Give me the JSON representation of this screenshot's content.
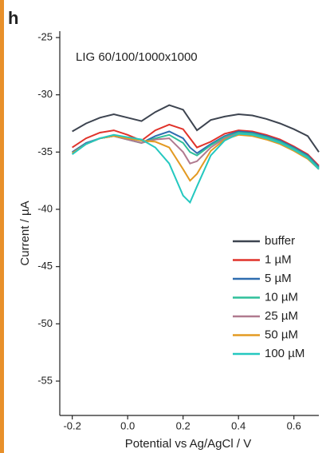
{
  "panel_label": "h",
  "chart_data": {
    "type": "line",
    "annotation": "LIG 60/100/1000x1000",
    "x_label": "Potential vs Ag/AgCl / V",
    "y_label": "Current / µA",
    "x": [
      -0.2,
      -0.15,
      -0.1,
      -0.05,
      0,
      0.05,
      0.1,
      0.15,
      0.2,
      0.225,
      0.25,
      0.3,
      0.35,
      0.4,
      0.45,
      0.5,
      0.55,
      0.6,
      0.65,
      0.69
    ],
    "series": [
      {
        "name": "buffer",
        "color": "#3d4450",
        "values": [
          -33.2,
          -32.5,
          -32.0,
          -31.7,
          -32.0,
          -32.3,
          -31.5,
          -30.9,
          -31.3,
          -32.2,
          -33.1,
          -32.2,
          -31.9,
          -31.7,
          -31.8,
          -32.1,
          -32.5,
          -33.0,
          -33.6,
          -35.0
        ]
      },
      {
        "name": "1 µM",
        "color": "#e0322a",
        "values": [
          -34.6,
          -33.8,
          -33.3,
          -33.1,
          -33.5,
          -34.0,
          -33.1,
          -32.6,
          -33.0,
          -33.8,
          -34.6,
          -34.1,
          -33.4,
          -33.1,
          -33.2,
          -33.5,
          -33.9,
          -34.5,
          -35.2,
          -36.2
        ]
      },
      {
        "name": "5 µM",
        "color": "#2e6db0",
        "values": [
          -35.0,
          -34.2,
          -33.8,
          -33.6,
          -33.9,
          -34.2,
          -33.6,
          -33.2,
          -33.8,
          -34.6,
          -35.1,
          -34.3,
          -33.6,
          -33.2,
          -33.3,
          -33.6,
          -34.0,
          -34.6,
          -35.3,
          -36.3
        ]
      },
      {
        "name": "10 µM",
        "color": "#2fbf9a",
        "values": [
          -35.1,
          -34.3,
          -33.8,
          -33.6,
          -33.9,
          -34.2,
          -33.8,
          -33.5,
          -34.2,
          -35.0,
          -35.3,
          -34.4,
          -33.7,
          -33.3,
          -33.4,
          -33.7,
          -34.1,
          -34.7,
          -35.4,
          -36.4
        ]
      },
      {
        "name": "25 µM",
        "color": "#b07a8f",
        "values": [
          -35.1,
          -34.3,
          -33.8,
          -33.6,
          -33.9,
          -34.2,
          -33.9,
          -33.8,
          -35.0,
          -36.0,
          -35.8,
          -34.6,
          -33.8,
          -33.4,
          -33.5,
          -33.8,
          -34.2,
          -34.8,
          -35.5,
          -36.5
        ]
      },
      {
        "name": "50 µM",
        "color": "#e39a22",
        "values": [
          -35.1,
          -34.3,
          -33.8,
          -33.6,
          -33.8,
          -34.0,
          -34.1,
          -34.6,
          -36.5,
          -37.5,
          -36.9,
          -34.9,
          -33.9,
          -33.5,
          -33.6,
          -33.9,
          -34.3,
          -34.9,
          -35.6,
          -36.5
        ]
      },
      {
        "name": "100 µM",
        "color": "#24c8c0",
        "values": [
          -35.2,
          -34.3,
          -33.8,
          -33.5,
          -33.7,
          -33.9,
          -34.6,
          -36.0,
          -38.8,
          -39.4,
          -38.0,
          -35.3,
          -34.0,
          -33.4,
          -33.5,
          -33.8,
          -34.2,
          -34.8,
          -35.5,
          -36.5
        ]
      }
    ],
    "xlim": [
      -0.245,
      0.69
    ],
    "xticks": [
      -0.2,
      {
        "value": 0,
        "label": "0.0"
      },
      0.2,
      0.4,
      0.6
    ],
    "ylim": [
      -58,
      -25
    ],
    "yticks": [
      -25,
      -30,
      -35,
      -40,
      -45,
      -50,
      -55
    ]
  }
}
